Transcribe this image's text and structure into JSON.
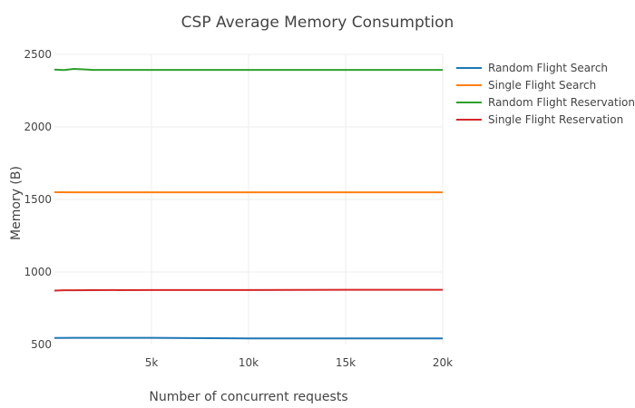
{
  "chart_data": {
    "type": "line",
    "title": "CSP Average Memory Consumption",
    "xlabel": "Number of concurrent requests",
    "ylabel": "Memory (B)",
    "xlim": [
      0,
      20000
    ],
    "ylim": [
      500,
      2500
    ],
    "x_ticks": [
      5000,
      10000,
      15000,
      20000
    ],
    "x_tick_labels": [
      "5k",
      "10k",
      "15k",
      "20k"
    ],
    "y_ticks": [
      500,
      1000,
      1500,
      2000,
      2500
    ],
    "y_tick_labels": [
      "500",
      "1000",
      "1500",
      "2000",
      "2500"
    ],
    "grid": true,
    "legend_position": "top-right",
    "series": [
      {
        "name": "Random Flight Search",
        "color": "#1f77b4",
        "x": [
          0,
          1000,
          2000,
          5000,
          8000,
          10000,
          12000,
          15000,
          18000,
          20000
        ],
        "y": [
          545,
          546,
          546,
          546,
          544,
          542,
          542,
          542,
          542,
          542
        ]
      },
      {
        "name": "Single Flight Search",
        "color": "#ff7f0e",
        "x": [
          0,
          1000,
          2000,
          5000,
          10000,
          15000,
          20000
        ],
        "y": [
          1550,
          1549,
          1549,
          1549,
          1549,
          1549,
          1549
        ]
      },
      {
        "name": "Random Flight Reservation",
        "color": "#2ca02c",
        "x": [
          0,
          500,
          1000,
          1500,
          2000,
          5000,
          10000,
          15000,
          20000
        ],
        "y": [
          2395,
          2392,
          2400,
          2397,
          2393,
          2393,
          2393,
          2393,
          2393
        ]
      },
      {
        "name": "Single Flight Reservation",
        "color": "#d62728",
        "x": [
          0,
          500,
          1000,
          2000,
          5000,
          10000,
          15000,
          20000
        ],
        "y": [
          872,
          874,
          874,
          875,
          876,
          876,
          877,
          877
        ]
      }
    ]
  }
}
